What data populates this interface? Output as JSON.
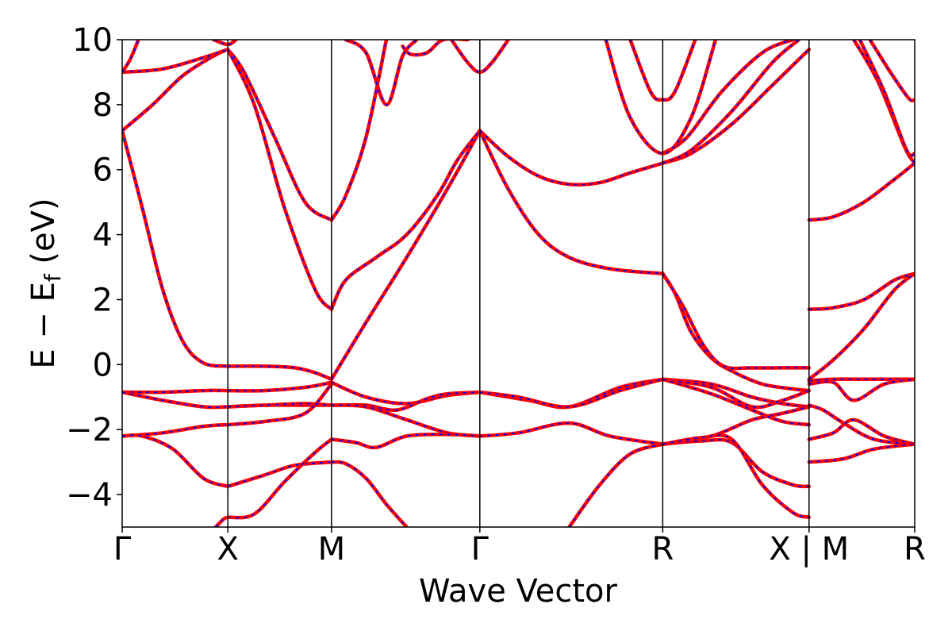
{
  "chart_data": {
    "type": "line",
    "title": "",
    "xlabel": "Wave Vector",
    "ylabel": "E − E",
    "ylabel_sub": "f",
    "ylabel_unit": " (eV)",
    "ylim": [
      -5,
      10
    ],
    "yticks": [
      {
        "value": -4,
        "label": "−4"
      },
      {
        "value": -2,
        "label": "−2"
      },
      {
        "value": 0,
        "label": "0"
      },
      {
        "value": 2,
        "label": "2"
      },
      {
        "value": 4,
        "label": "4"
      },
      {
        "value": 6,
        "label": "6"
      },
      {
        "value": 8,
        "label": "8"
      },
      {
        "value": 10,
        "label": "10"
      }
    ],
    "xlim": [
      0,
      3.9
    ],
    "kpoints": [
      {
        "label": "Γ",
        "x": 0.0
      },
      {
        "label": "X",
        "x": 0.52
      },
      {
        "label": "M",
        "x": 1.03
      },
      {
        "label": "Γ",
        "x": 1.76
      },
      {
        "label": "R",
        "x": 2.66
      },
      {
        "label": "X | M",
        "x": 3.38
      },
      {
        "label": "R",
        "x": 3.9
      }
    ],
    "grid": false,
    "legend": false,
    "series_style": {
      "outer_color": "#ff0000",
      "dash_color": "#0000ff"
    },
    "series": [
      {
        "x": [
          0,
          0.1,
          0.2,
          0.3,
          0.4,
          0.52
        ],
        "y": [
          7.2,
          4.8,
          2.3,
          0.7,
          0.05,
          -0.05
        ]
      },
      {
        "x": [
          0.52,
          0.7,
          0.85,
          0.95,
          1.03
        ],
        "y": [
          -0.05,
          -0.05,
          -0.1,
          -0.25,
          -0.45
        ]
      },
      {
        "x": [
          1.03,
          1.2,
          1.4,
          1.6,
          1.76
        ],
        "y": [
          -0.45,
          1.3,
          3.3,
          5.4,
          7.2
        ]
      },
      {
        "x": [
          1.76,
          1.9,
          2.05,
          2.2,
          2.4,
          2.66
        ],
        "y": [
          7.2,
          5.4,
          4.0,
          3.3,
          2.95,
          2.8
        ]
      },
      {
        "x": [
          2.66,
          2.72,
          2.8,
          2.9,
          3.0,
          3.15,
          3.3,
          3.38
        ],
        "y": [
          2.8,
          2.2,
          1.0,
          0.2,
          -0.2,
          -0.6,
          -0.75,
          -0.8
        ]
      },
      {
        "x": [
          2.66,
          2.76,
          2.86,
          2.96,
          3.1,
          3.25,
          3.38
        ],
        "y": [
          2.8,
          1.8,
          0.6,
          -0.05,
          -0.1,
          -0.1,
          -0.1
        ]
      },
      {
        "x": [
          0,
          0.15,
          0.3,
          0.45,
          0.52
        ],
        "y": [
          7.2,
          8.0,
          8.9,
          9.5,
          9.7
        ]
      },
      {
        "x": [
          0,
          0.2,
          0.4,
          0.52
        ],
        "y": [
          9.0,
          9.1,
          9.45,
          9.7
        ]
      },
      {
        "x": [
          0.52,
          0.6,
          0.75,
          0.9,
          1.03
        ],
        "y": [
          9.7,
          9.0,
          7.0,
          5.0,
          4.45
        ]
      },
      {
        "x": [
          1.03,
          1.1,
          1.2,
          1.3
        ],
        "y": [
          4.45,
          5.2,
          7.0,
          10.0
        ]
      },
      {
        "x": [
          0.52,
          0.65,
          0.8,
          0.95,
          1.03
        ],
        "y": [
          9.7,
          8.0,
          4.8,
          2.3,
          1.7
        ]
      },
      {
        "x": [
          1.03,
          1.1,
          1.25,
          1.4,
          1.55,
          1.65,
          1.76
        ],
        "y": [
          1.7,
          2.6,
          3.3,
          4.0,
          5.2,
          6.3,
          7.2
        ]
      },
      {
        "x": [
          1.76,
          1.9,
          2.05,
          2.2,
          2.35,
          2.5,
          2.66
        ],
        "y": [
          7.2,
          6.4,
          5.8,
          5.55,
          5.6,
          5.9,
          6.2
        ]
      },
      {
        "x": [
          2.66,
          2.8,
          3.0,
          3.2,
          3.38
        ],
        "y": [
          6.2,
          6.5,
          7.4,
          8.6,
          9.7
        ]
      },
      {
        "x": [
          2.66,
          2.8,
          3.0,
          3.2,
          3.33
        ],
        "y": [
          6.2,
          6.6,
          7.8,
          9.3,
          10.0
        ]
      },
      {
        "x": [
          2.66,
          2.78,
          2.95,
          3.15,
          3.3
        ],
        "y": [
          6.5,
          7.0,
          8.4,
          9.6,
          10.0
        ]
      },
      {
        "x": [
          2.38,
          2.5,
          2.66,
          2.8,
          2.92
        ],
        "y": [
          10.0,
          7.6,
          6.5,
          7.6,
          10.0
        ]
      },
      {
        "x": [
          2.5,
          2.6,
          2.66,
          2.72,
          2.82
        ],
        "y": [
          10.0,
          8.4,
          8.15,
          8.4,
          10.0
        ]
      },
      {
        "x": [
          1.62,
          1.7,
          1.76,
          1.82,
          1.9
        ],
        "y": [
          10.0,
          9.3,
          9.0,
          9.3,
          10.0
        ]
      },
      {
        "x": [
          1.38,
          1.42,
          1.5,
          1.58,
          1.7
        ],
        "y": [
          9.8,
          9.55,
          9.6,
          10.0,
          10.0
        ]
      },
      {
        "x": [
          1.1,
          1.2,
          1.3,
          1.38,
          1.45
        ],
        "y": [
          10.0,
          9.6,
          8.0,
          9.5,
          10.0
        ]
      },
      {
        "x": [
          0.45,
          0.52,
          0.56
        ],
        "y": [
          10.0,
          9.85,
          10.0
        ]
      },
      {
        "x": [
          0,
          0.04,
          0.08
        ],
        "y": [
          9.0,
          9.4,
          10.0
        ]
      },
      {
        "x": [
          0,
          0.2,
          0.4,
          0.52
        ],
        "y": [
          -0.85,
          -0.85,
          -0.8,
          -0.8
        ]
      },
      {
        "x": [
          0.52,
          0.7,
          0.9,
          1.03
        ],
        "y": [
          -0.8,
          -0.8,
          -0.7,
          -0.55
        ]
      },
      {
        "x": [
          1.03,
          1.2,
          1.4,
          1.6,
          1.76
        ],
        "y": [
          -0.55,
          -1.0,
          -1.2,
          -0.95,
          -0.85
        ]
      },
      {
        "x": [
          1.76,
          2.0,
          2.2,
          2.45,
          2.66
        ],
        "y": [
          -0.85,
          -1.1,
          -1.3,
          -0.7,
          -0.45
        ]
      },
      {
        "x": [
          2.66,
          2.9,
          3.1,
          3.25,
          3.38
        ],
        "y": [
          -0.45,
          -0.6,
          -1.0,
          -1.2,
          -1.3
        ]
      },
      {
        "x": [
          0,
          0.2,
          0.4,
          0.52
        ],
        "y": [
          -0.85,
          -1.1,
          -1.3,
          -1.3
        ]
      },
      {
        "x": [
          0.52,
          0.7,
          0.9,
          1.03
        ],
        "y": [
          -1.3,
          -1.25,
          -1.25,
          -1.25
        ]
      },
      {
        "x": [
          1.03,
          1.2,
          1.35,
          1.5,
          1.6,
          1.76
        ],
        "y": [
          -1.25,
          -1.25,
          -1.4,
          -1.05,
          -0.9,
          -0.85
        ]
      },
      {
        "x": [
          1.76,
          1.95,
          2.2,
          2.45,
          2.66
        ],
        "y": [
          -0.85,
          -1.0,
          -1.3,
          -0.8,
          -0.45
        ]
      },
      {
        "x": [
          2.66,
          2.9,
          3.1,
          3.25,
          3.38
        ],
        "y": [
          -0.45,
          -0.7,
          -1.3,
          -1.1,
          -0.8
        ]
      },
      {
        "x": [
          0,
          0.2,
          0.4,
          0.52
        ],
        "y": [
          -2.2,
          -2.1,
          -1.9,
          -1.85
        ]
      },
      {
        "x": [
          0.52,
          0.7,
          0.9,
          1.03
        ],
        "y": [
          -1.85,
          -1.75,
          -1.5,
          -0.6
        ]
      },
      {
        "x": [
          0.52,
          0.7,
          0.9,
          1.03
        ],
        "y": [
          -1.3,
          -1.25,
          -1.2,
          -1.25
        ]
      },
      {
        "x": [
          1.03,
          1.2,
          1.4,
          1.6,
          1.76
        ],
        "y": [
          -1.25,
          -1.3,
          -1.7,
          -2.1,
          -2.2
        ]
      },
      {
        "x": [
          1.76,
          1.95,
          2.2,
          2.4,
          2.66
        ],
        "y": [
          -2.2,
          -2.1,
          -1.8,
          -2.2,
          -2.45
        ]
      },
      {
        "x": [
          2.66,
          2.9,
          3.1,
          3.25,
          3.38
        ],
        "y": [
          -2.45,
          -2.2,
          -1.7,
          -1.5,
          -1.3
        ]
      },
      {
        "x": [
          2.66,
          2.9,
          3.1,
          3.25,
          3.38
        ],
        "y": [
          -0.45,
          -0.9,
          -1.4,
          -1.75,
          -1.85
        ]
      },
      {
        "x": [
          0,
          0.1,
          0.25,
          0.4,
          0.52
        ],
        "y": [
          -2.2,
          -2.2,
          -2.6,
          -3.5,
          -3.75
        ]
      },
      {
        "x": [
          0.52,
          0.7,
          0.85,
          1.03
        ],
        "y": [
          -3.75,
          -3.4,
          -3.1,
          -3.0
        ]
      },
      {
        "x": [
          1.03,
          1.1,
          1.2,
          1.3,
          1.4
        ],
        "y": [
          -3.0,
          -3.05,
          -3.5,
          -4.3,
          -5.0
        ]
      },
      {
        "x": [
          0.52,
          0.65,
          0.8,
          0.95,
          1.03
        ],
        "y": [
          -4.7,
          -4.6,
          -3.6,
          -2.7,
          -2.3
        ]
      },
      {
        "x": [
          1.03,
          1.15,
          1.25,
          1.4,
          1.6,
          1.76
        ],
        "y": [
          -2.3,
          -2.4,
          -2.55,
          -2.2,
          -2.15,
          -2.2
        ]
      },
      {
        "x": [
          2.2,
          2.35,
          2.5,
          2.66
        ],
        "y": [
          -5.0,
          -3.7,
          -2.75,
          -2.45
        ]
      },
      {
        "x": [
          2.66,
          2.85,
          3.0,
          3.15,
          3.3,
          3.38
        ],
        "y": [
          -2.45,
          -2.35,
          -2.4,
          -3.3,
          -3.7,
          -3.75
        ]
      },
      {
        "x": [
          2.66,
          2.85,
          3.0,
          3.15,
          3.3,
          3.38
        ],
        "y": [
          -2.45,
          -2.25,
          -2.3,
          -3.7,
          -4.55,
          -4.7
        ]
      },
      {
        "x": [
          0.46,
          0.5,
          0.52
        ],
        "y": [
          -5.0,
          -4.75,
          -4.7
        ]
      },
      {
        "x": [
          3.38,
          3.5,
          3.65,
          3.8,
          3.9
        ],
        "y": [
          4.45,
          4.55,
          5.0,
          5.7,
          6.2
        ]
      },
      {
        "x": [
          3.38,
          3.5,
          3.65,
          3.8,
          3.9
        ],
        "y": [
          1.7,
          1.75,
          2.0,
          2.6,
          2.8
        ]
      },
      {
        "x": [
          3.38,
          3.5,
          3.65,
          3.8,
          3.9
        ],
        "y": [
          -0.45,
          0.15,
          1.1,
          2.3,
          2.8
        ]
      },
      {
        "x": [
          3.38,
          3.5,
          3.65,
          3.8,
          3.9
        ],
        "y": [
          -0.5,
          -0.45,
          -0.45,
          -0.45,
          -0.45
        ]
      },
      {
        "x": [
          3.38,
          3.5,
          3.6,
          3.75,
          3.9
        ],
        "y": [
          -0.6,
          -0.55,
          -1.1,
          -0.6,
          -0.45
        ]
      },
      {
        "x": [
          3.38,
          3.45,
          3.55,
          3.7,
          3.9
        ],
        "y": [
          -1.25,
          -1.4,
          -1.8,
          -2.3,
          -2.45
        ]
      },
      {
        "x": [
          3.38,
          3.5,
          3.6,
          3.75,
          3.9
        ],
        "y": [
          -2.3,
          -2.1,
          -1.7,
          -2.2,
          -2.45
        ]
      },
      {
        "x": [
          3.38,
          3.55,
          3.7,
          3.9
        ],
        "y": [
          -3.0,
          -2.9,
          -2.6,
          -2.45
        ]
      },
      {
        "x": [
          3.6,
          3.72,
          3.85,
          3.9
        ],
        "y": [
          10.0,
          8.7,
          6.7,
          6.2
        ]
      },
      {
        "x": [
          3.63,
          3.75,
          3.86,
          3.9
        ],
        "y": [
          10.0,
          8.4,
          6.6,
          6.5
        ]
      },
      {
        "x": [
          3.68,
          3.78,
          3.87,
          3.9
        ],
        "y": [
          10.0,
          9.0,
          8.2,
          8.15
        ]
      }
    ]
  }
}
